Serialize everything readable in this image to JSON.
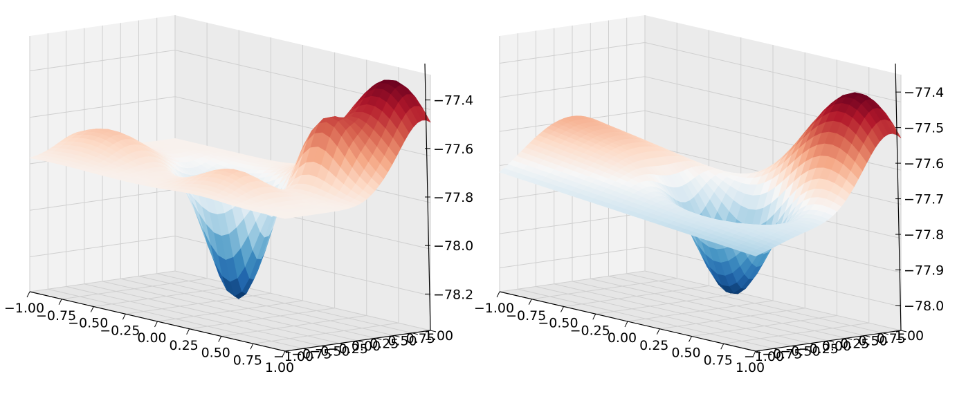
{
  "chart_data": [
    {
      "type": "surface",
      "colormap": "RdBu_r",
      "x_ticks": [
        "−1.00",
        "−0.75",
        "−0.50",
        "−0.25",
        "0.00",
        "0.25",
        "0.50",
        "0.75",
        "1.00"
      ],
      "y_ticks": [
        "−1.00",
        "−0.75",
        "−0.50",
        "−0.25",
        "0.00",
        "0.25",
        "0.50",
        "0.75",
        "1.00"
      ],
      "z_ticks": [
        "−77.4",
        "−77.6",
        "−77.8",
        "−78.0",
        "−78.2"
      ],
      "xlim": [
        -1,
        1
      ],
      "ylim": [
        -1,
        1
      ],
      "zlim": [
        -78.35,
        -77.25
      ],
      "grid": true,
      "surface_peak": [
        0.75,
        0.9,
        -77.3
      ],
      "surface_min": [
        0.0,
        0.1,
        -78.3
      ]
    },
    {
      "type": "surface",
      "colormap": "RdBu_r",
      "x_ticks": [
        "−1.00",
        "−0.75",
        "−0.50",
        "−0.25",
        "0.00",
        "0.25",
        "0.50",
        "0.75",
        "1.00"
      ],
      "y_ticks": [
        "−1.00",
        "−0.75",
        "−0.50",
        "−0.25",
        "0.00",
        "0.25",
        "0.50",
        "0.75",
        "1.00"
      ],
      "z_ticks": [
        "−77.4",
        "−77.5",
        "−77.6",
        "−77.7",
        "−77.8",
        "−77.9",
        "−78.0"
      ],
      "xlim": [
        -1,
        1
      ],
      "ylim": [
        -1,
        1
      ],
      "zlim": [
        -78.07,
        -77.32
      ],
      "grid": true,
      "surface_peak": [
        0.75,
        0.9,
        -77.35
      ],
      "surface_min": [
        0.25,
        0.0,
        -78.05
      ]
    }
  ]
}
